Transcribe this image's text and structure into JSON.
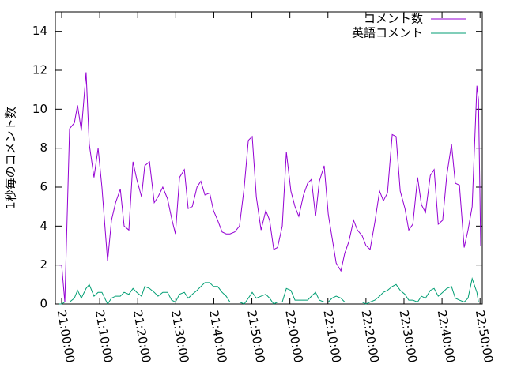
{
  "chart_data": {
    "type": "line",
    "y_label": "1秒毎のコメント数",
    "x": [
      "20:59:20",
      "21:00:00",
      "21:00:50",
      "21:02:05",
      "21:03:20",
      "21:04:10",
      "21:05:10",
      "21:06:25",
      "21:07:15",
      "21:08:30",
      "21:09:35",
      "21:10:35",
      "21:12:05",
      "21:13:05",
      "21:14:10",
      "21:15:25",
      "21:16:25",
      "21:17:40",
      "21:18:45",
      "21:19:45",
      "21:21:00",
      "21:21:50",
      "21:23:05",
      "21:24:20",
      "21:25:20",
      "21:26:35",
      "21:27:50",
      "21:28:55",
      "21:29:55",
      "21:31:00",
      "21:32:15",
      "21:33:15",
      "21:34:20",
      "21:35:35",
      "21:36:35",
      "21:37:40",
      "21:38:55",
      "21:39:55",
      "21:41:00",
      "21:42:10",
      "21:43:15",
      "21:44:15",
      "21:45:30",
      "21:46:45",
      "21:48:00",
      "21:49:05",
      "21:50:05",
      "21:51:10",
      "21:52:25",
      "21:53:40",
      "21:54:40",
      "21:55:45",
      "21:56:45",
      "21:58:00",
      "21:59:05",
      "22:00:15",
      "22:01:20",
      "22:02:20",
      "22:03:35",
      "22:04:40",
      "22:05:40",
      "22:06:45",
      "22:07:45",
      "22:09:00",
      "22:10:05",
      "22:11:05",
      "22:12:10",
      "22:13:25",
      "22:14:25",
      "22:15:30",
      "22:16:45",
      "22:17:45",
      "22:19:00",
      "22:20:00",
      "22:21:05",
      "22:22:20",
      "22:23:35",
      "22:24:35",
      "22:25:40",
      "22:26:55",
      "22:27:55",
      "22:29:00",
      "22:30:15",
      "22:31:15",
      "22:32:20",
      "22:33:35",
      "22:34:35",
      "22:35:40",
      "22:36:55",
      "22:37:55",
      "22:39:00",
      "22:40:10",
      "22:41:15",
      "22:42:30",
      "22:43:30",
      "22:44:35",
      "22:45:50",
      "22:46:50",
      "22:47:55",
      "22:49:10",
      "22:49:35",
      "22:50:10"
    ],
    "series": [
      {
        "name": "コメント数",
        "color": "#9400d3",
        "values": [
          2.0,
          2.0,
          0.1,
          9.0,
          9.3,
          10.2,
          8.9,
          11.9,
          8.2,
          6.5,
          8.0,
          6.0,
          2.2,
          4.3,
          5.2,
          5.9,
          4.0,
          3.8,
          7.3,
          6.4,
          5.5,
          7.1,
          7.3,
          5.2,
          5.5,
          6.0,
          5.4,
          4.4,
          3.6,
          6.5,
          6.9,
          4.9,
          5.0,
          6.0,
          6.3,
          5.6,
          5.7,
          4.8,
          4.3,
          3.7,
          3.6,
          3.6,
          3.7,
          4.0,
          6.0,
          8.4,
          8.6,
          5.5,
          3.8,
          4.8,
          4.3,
          2.8,
          2.9,
          4.0,
          7.8,
          5.8,
          5.0,
          4.5,
          5.6,
          6.2,
          6.4,
          4.5,
          6.3,
          7.1,
          4.6,
          3.4,
          2.1,
          1.7,
          2.6,
          3.2,
          4.3,
          3.8,
          3.5,
          3.0,
          2.8,
          4.2,
          5.8,
          5.3,
          5.7,
          8.7,
          8.6,
          5.8,
          4.9,
          3.8,
          4.1,
          6.5,
          5.1,
          4.7,
          6.6,
          6.9,
          4.1,
          4.3,
          6.6,
          8.2,
          6.2,
          6.1,
          2.9,
          3.8,
          5.0,
          11.2,
          10.5,
          3.0
        ]
      },
      {
        "name": "英語コメント",
        "color": "#009e73",
        "values": [
          0.0,
          0.0,
          0.1,
          0.1,
          0.3,
          0.7,
          0.3,
          0.8,
          1.0,
          0.4,
          0.6,
          0.6,
          0.0,
          0.3,
          0.4,
          0.4,
          0.6,
          0.5,
          0.8,
          0.6,
          0.4,
          0.9,
          0.8,
          0.6,
          0.4,
          0.6,
          0.6,
          0.2,
          0.1,
          0.5,
          0.6,
          0.3,
          0.5,
          0.7,
          0.9,
          1.1,
          1.1,
          0.9,
          0.9,
          0.6,
          0.4,
          0.1,
          0.1,
          0.1,
          0.0,
          0.3,
          0.6,
          0.3,
          0.4,
          0.5,
          0.3,
          0.0,
          0.1,
          0.1,
          0.8,
          0.7,
          0.2,
          0.2,
          0.2,
          0.2,
          0.4,
          0.6,
          0.2,
          0.1,
          0.1,
          0.3,
          0.4,
          0.3,
          0.1,
          0.1,
          0.1,
          0.1,
          0.1,
          0.0,
          0.1,
          0.2,
          0.4,
          0.6,
          0.7,
          0.9,
          1.0,
          0.7,
          0.5,
          0.2,
          0.2,
          0.1,
          0.4,
          0.3,
          0.7,
          0.8,
          0.4,
          0.6,
          0.8,
          0.9,
          0.3,
          0.2,
          0.1,
          0.3,
          1.3,
          0.6,
          0.1,
          0.1
        ]
      }
    ],
    "xlim": [
      "20:58:20",
      "22:50:35"
    ],
    "xticks": [
      "21:00:00",
      "21:10:00",
      "21:20:00",
      "21:30:00",
      "21:40:00",
      "21:50:00",
      "22:00:00",
      "22:10:00",
      "22:20:00",
      "22:30:00",
      "22:40:00",
      "22:50:00"
    ],
    "ylim": [
      0,
      15
    ],
    "yticks": [
      0,
      2,
      4,
      6,
      8,
      10,
      12,
      14
    ],
    "legend": "top-right"
  }
}
